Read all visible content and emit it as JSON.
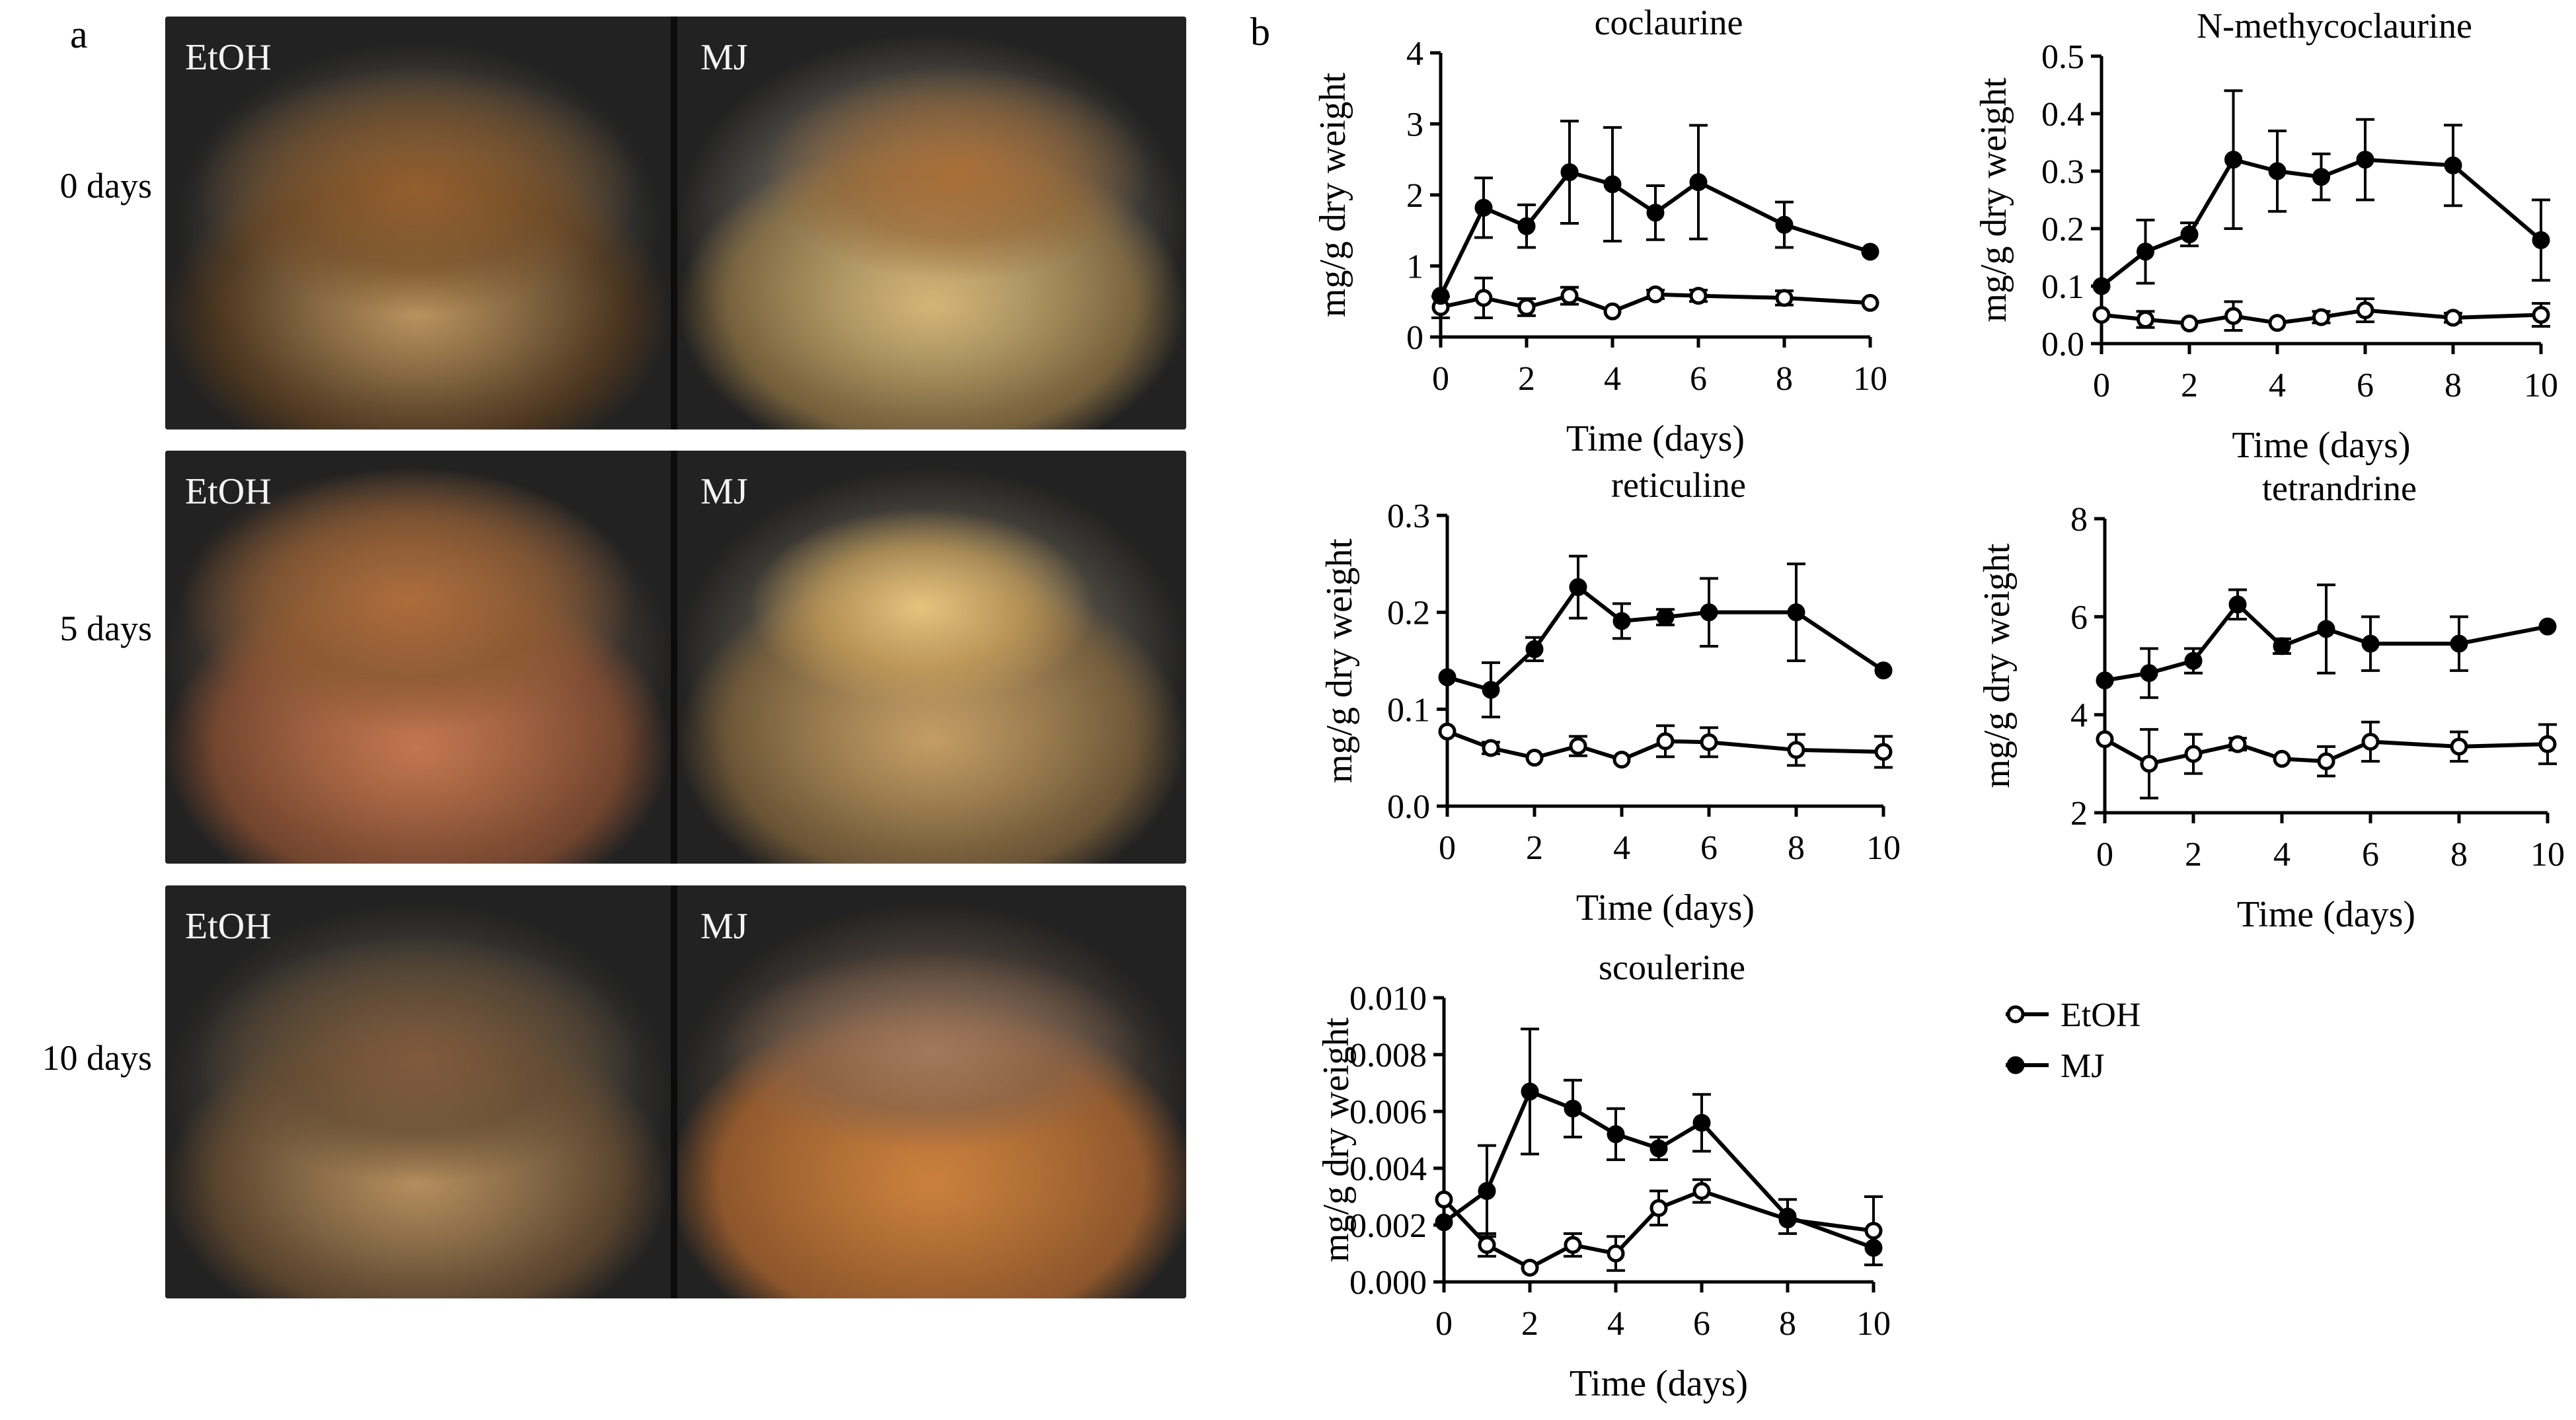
{
  "figure": {
    "panel_a_label": "a",
    "panel_b_label": "b"
  },
  "photos": {
    "rows": [
      {
        "time_label": "0 days",
        "left_label": "EtOH",
        "right_label": "MJ"
      },
      {
        "time_label": "5 days",
        "left_label": "EtOH",
        "right_label": "MJ"
      },
      {
        "time_label": "10 days",
        "left_label": "EtOH",
        "right_label": "MJ"
      }
    ]
  },
  "legend": {
    "items": [
      {
        "label": "EtOH",
        "marker": "open-circle"
      },
      {
        "label": "MJ",
        "marker": "filled-circle"
      }
    ]
  },
  "chart_data": [
    {
      "type": "line",
      "title": "coclaurine",
      "xlabel": "Time (days)",
      "ylabel": "mg/g dry weight",
      "xlim": [
        0,
        10
      ],
      "ylim": [
        0,
        4
      ],
      "xticks": [
        "0",
        "2",
        "4",
        "6",
        "8",
        "10"
      ],
      "yticks": [
        "0",
        "1",
        "2",
        "3",
        "4"
      ],
      "x": [
        0,
        1,
        2,
        3,
        4,
        5,
        6,
        8,
        10
      ],
      "series": [
        {
          "name": "EtOH",
          "marker": "open",
          "values": [
            0.42,
            0.55,
            0.42,
            0.58,
            0.36,
            0.6,
            0.58,
            0.55,
            0.48
          ],
          "errors": [
            0.15,
            0.28,
            0.12,
            0.12,
            0.0,
            0.06,
            0.08,
            0.1,
            0.0
          ]
        },
        {
          "name": "MJ",
          "marker": "filled",
          "values": [
            0.58,
            1.82,
            1.56,
            2.32,
            2.15,
            1.75,
            2.18,
            1.58,
            1.2
          ],
          "errors": [
            0.0,
            0.42,
            0.3,
            0.72,
            0.8,
            0.38,
            0.8,
            0.32,
            0.0
          ]
        }
      ]
    },
    {
      "type": "line",
      "title": "N-methycoclaurine",
      "xlabel": "Time (days)",
      "ylabel": "mg/g dry weight",
      "xlim": [
        0,
        10
      ],
      "ylim": [
        0,
        0.5
      ],
      "xticks": [
        "0",
        "2",
        "4",
        "6",
        "8",
        "10"
      ],
      "yticks": [
        "0.0",
        "0.1",
        "0.2",
        "0.3",
        "0.4",
        "0.5"
      ],
      "x": [
        0,
        1,
        2,
        3,
        4,
        5,
        6,
        8,
        10
      ],
      "series": [
        {
          "name": "EtOH",
          "marker": "open",
          "values": [
            0.05,
            0.042,
            0.035,
            0.048,
            0.036,
            0.046,
            0.058,
            0.045,
            0.05
          ],
          "errors": [
            0.0,
            0.014,
            0.0,
            0.025,
            0.0,
            0.01,
            0.02,
            0.008,
            0.02
          ]
        },
        {
          "name": "MJ",
          "marker": "filled",
          "values": [
            0.1,
            0.16,
            0.19,
            0.32,
            0.3,
            0.29,
            0.32,
            0.31,
            0.18
          ],
          "errors": [
            0.0,
            0.055,
            0.02,
            0.12,
            0.07,
            0.04,
            0.07,
            0.07,
            0.07
          ]
        }
      ]
    },
    {
      "type": "line",
      "title": "reticuline",
      "xlabel": "Time (days)",
      "ylabel": "mg/g dry weight",
      "xlim": [
        0,
        10
      ],
      "ylim": [
        0,
        0.3
      ],
      "xticks": [
        "0",
        "2",
        "4",
        "6",
        "8",
        "10"
      ],
      "yticks": [
        "0.0",
        "0.1",
        "0.2",
        "0.3"
      ],
      "x": [
        0,
        1,
        2,
        3,
        4,
        5,
        6,
        8,
        10
      ],
      "series": [
        {
          "name": "EtOH",
          "marker": "open",
          "values": [
            0.077,
            0.06,
            0.05,
            0.062,
            0.048,
            0.067,
            0.066,
            0.058,
            0.056
          ],
          "errors": [
            0.0,
            0.006,
            0.0,
            0.01,
            0.0,
            0.016,
            0.015,
            0.016,
            0.016
          ]
        },
        {
          "name": "MJ",
          "marker": "filled",
          "values": [
            0.133,
            0.12,
            0.162,
            0.226,
            0.191,
            0.195,
            0.2,
            0.2,
            0.14
          ],
          "errors": [
            0.0,
            0.028,
            0.012,
            0.032,
            0.018,
            0.008,
            0.035,
            0.05,
            0.0
          ]
        }
      ]
    },
    {
      "type": "line",
      "title": "tetrandrine",
      "xlabel": "Time (days)",
      "ylabel": "mg/g dry weight",
      "xlim": [
        0,
        10
      ],
      "ylim": [
        2,
        8
      ],
      "xticks": [
        "0",
        "2",
        "4",
        "6",
        "8",
        "10"
      ],
      "yticks": [
        "2",
        "4",
        "6",
        "8"
      ],
      "x": [
        0,
        1,
        2,
        3,
        4,
        5,
        6,
        8,
        10
      ],
      "series": [
        {
          "name": "EtOH",
          "marker": "open",
          "values": [
            3.5,
            3.0,
            3.2,
            3.4,
            3.1,
            3.05,
            3.45,
            3.35,
            3.4
          ],
          "errors": [
            0.0,
            0.7,
            0.4,
            0.12,
            0.0,
            0.3,
            0.4,
            0.3,
            0.4
          ]
        },
        {
          "name": "MJ",
          "marker": "filled",
          "values": [
            4.7,
            4.85,
            5.1,
            6.25,
            5.4,
            5.75,
            5.45,
            5.45,
            5.8
          ],
          "errors": [
            0.0,
            0.5,
            0.25,
            0.3,
            0.15,
            0.9,
            0.55,
            0.55,
            0.0
          ]
        }
      ]
    },
    {
      "type": "line",
      "title": "scoulerine",
      "xlabel": "Time (days)",
      "ylabel": "mg/g dry weight",
      "xlim": [
        0,
        10
      ],
      "ylim": [
        0,
        0.01
      ],
      "xticks": [
        "0",
        "2",
        "4",
        "6",
        "8",
        "10"
      ],
      "yticks": [
        "0.000",
        "0.002",
        "0.004",
        "0.006",
        "0.008",
        "0.010"
      ],
      "x": [
        0,
        1,
        2,
        3,
        4,
        5,
        6,
        8,
        10
      ],
      "series": [
        {
          "name": "EtOH",
          "marker": "open",
          "values": [
            0.0029,
            0.0013,
            0.0005,
            0.0013,
            0.001,
            0.0026,
            0.0032,
            0.0022,
            0.0018
          ],
          "errors": [
            0.0,
            0.0004,
            0.0,
            0.0004,
            0.0006,
            0.0006,
            0.0004,
            0.0,
            0.0012
          ]
        },
        {
          "name": "MJ",
          "marker": "filled",
          "values": [
            0.0021,
            0.0032,
            0.0067,
            0.0061,
            0.0052,
            0.0047,
            0.0056,
            0.0023,
            0.0012
          ],
          "errors": [
            0.0,
            0.0016,
            0.0022,
            0.001,
            0.0009,
            0.0004,
            0.001,
            0.0006,
            0.0
          ]
        }
      ]
    }
  ]
}
